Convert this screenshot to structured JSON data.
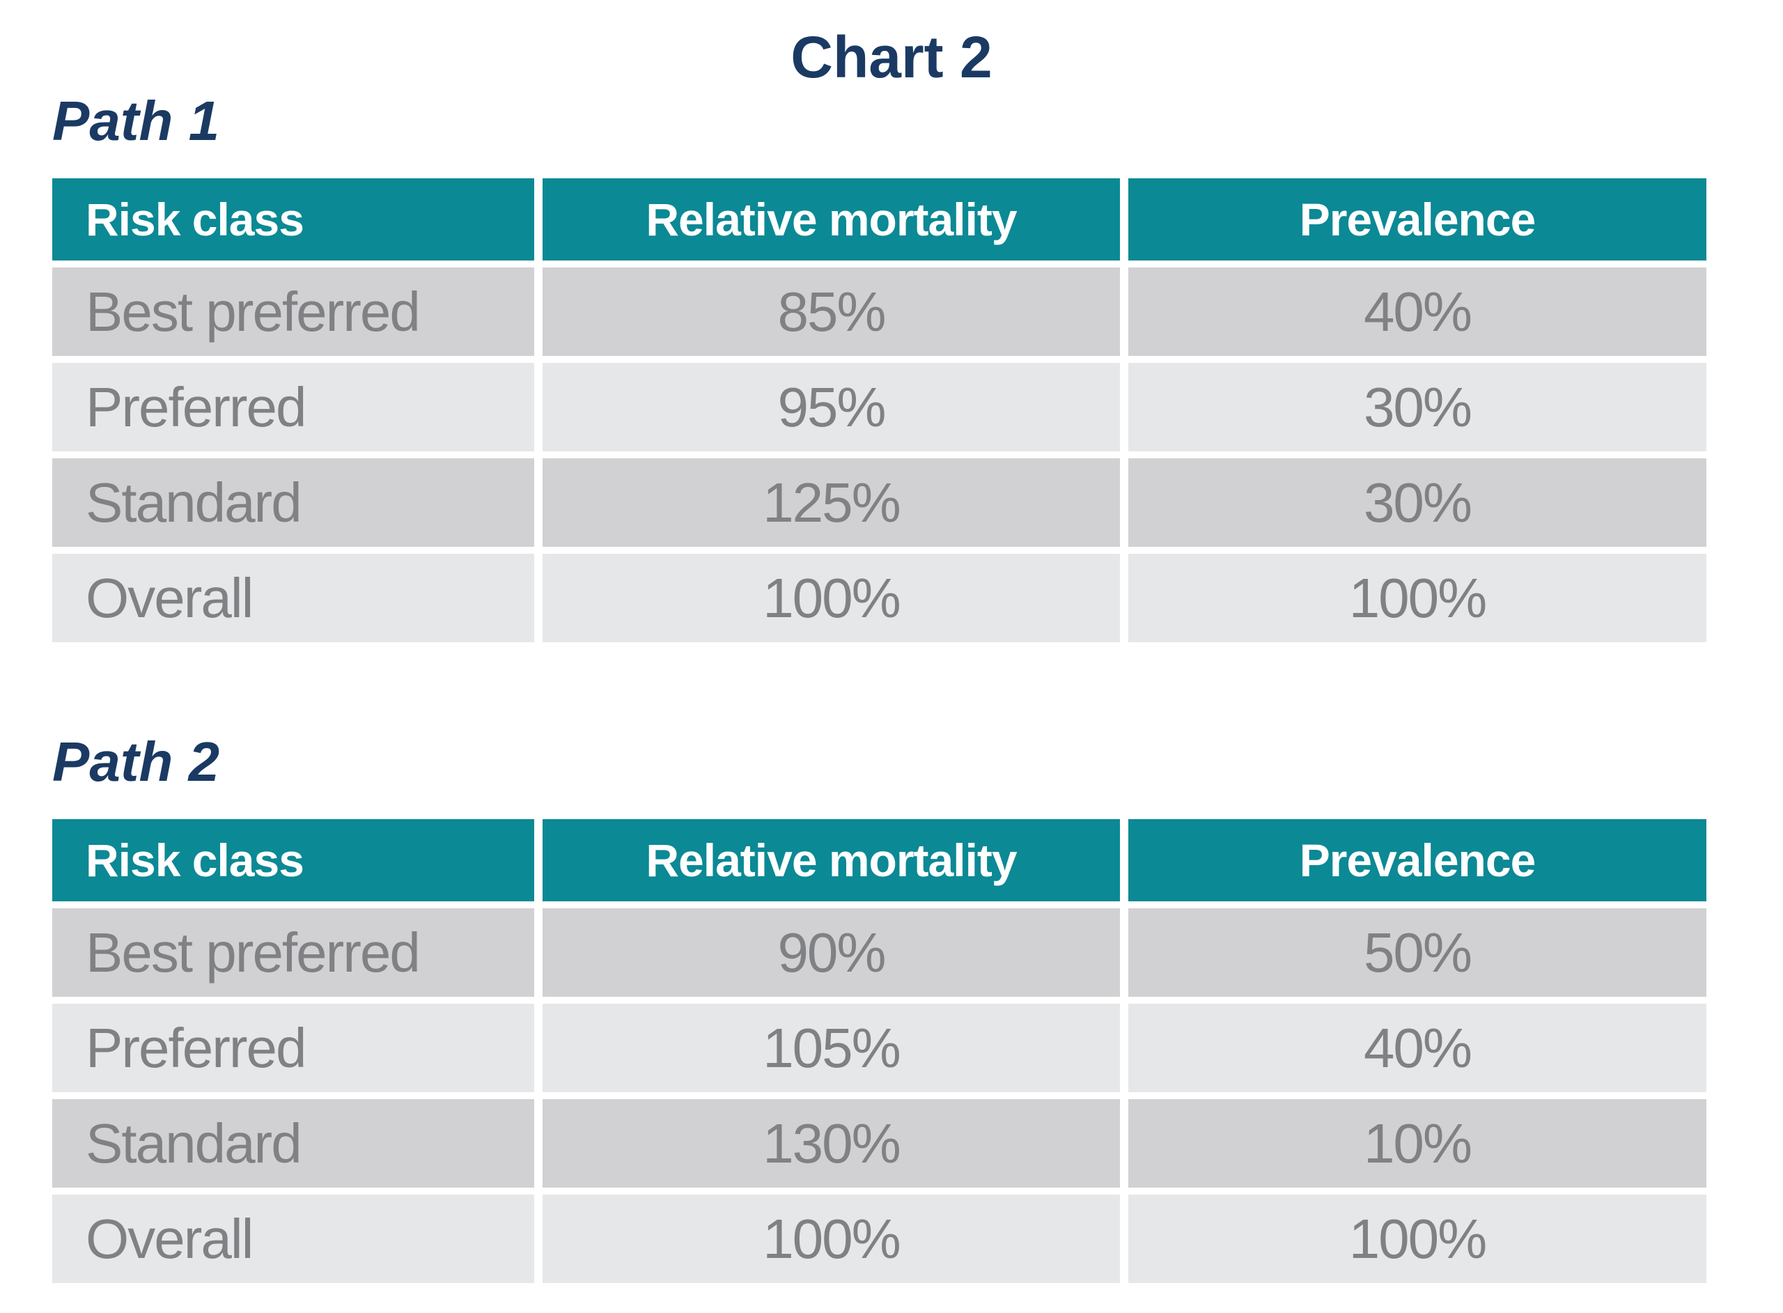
{
  "title": "Chart 2",
  "colors": {
    "header_background": "#0B8995",
    "header_text": "#FFFFFF",
    "title_navy": "#1B3A63",
    "row_dark": "#D1D1D3",
    "row_light": "#E6E7E8",
    "cell_text": "#808184"
  },
  "sections": [
    {
      "label": "Path 1",
      "columns": [
        "Risk class",
        "Relative mortality",
        "Prevalence"
      ],
      "rows": [
        [
          "Best preferred",
          "85%",
          "40%"
        ],
        [
          "Preferred",
          "95%",
          "30%"
        ],
        [
          "Standard",
          "125%",
          "30%"
        ],
        [
          "Overall",
          "100%",
          "100%"
        ]
      ]
    },
    {
      "label": "Path 2",
      "columns": [
        "Risk class",
        "Relative mortality",
        "Prevalence"
      ],
      "rows": [
        [
          "Best preferred",
          "90%",
          "50%"
        ],
        [
          "Preferred",
          "105%",
          "40%"
        ],
        [
          "Standard",
          "130%",
          "10%"
        ],
        [
          "Overall",
          "100%",
          "100%"
        ]
      ]
    }
  ],
  "chart_data": [
    {
      "type": "table",
      "title": "Path 1",
      "columns": [
        "Risk class",
        "Relative mortality",
        "Prevalence"
      ],
      "rows": [
        {
          "risk_class": "Best preferred",
          "relative_mortality_pct": 85,
          "prevalence_pct": 40
        },
        {
          "risk_class": "Preferred",
          "relative_mortality_pct": 95,
          "prevalence_pct": 30
        },
        {
          "risk_class": "Standard",
          "relative_mortality_pct": 125,
          "prevalence_pct": 30
        },
        {
          "risk_class": "Overall",
          "relative_mortality_pct": 100,
          "prevalence_pct": 100
        }
      ]
    },
    {
      "type": "table",
      "title": "Path 2",
      "columns": [
        "Risk class",
        "Relative mortality",
        "Prevalence"
      ],
      "rows": [
        {
          "risk_class": "Best preferred",
          "relative_mortality_pct": 90,
          "prevalence_pct": 50
        },
        {
          "risk_class": "Preferred",
          "relative_mortality_pct": 105,
          "prevalence_pct": 40
        },
        {
          "risk_class": "Standard",
          "relative_mortality_pct": 130,
          "prevalence_pct": 10
        },
        {
          "risk_class": "Overall",
          "relative_mortality_pct": 100,
          "prevalence_pct": 100
        }
      ]
    }
  ]
}
